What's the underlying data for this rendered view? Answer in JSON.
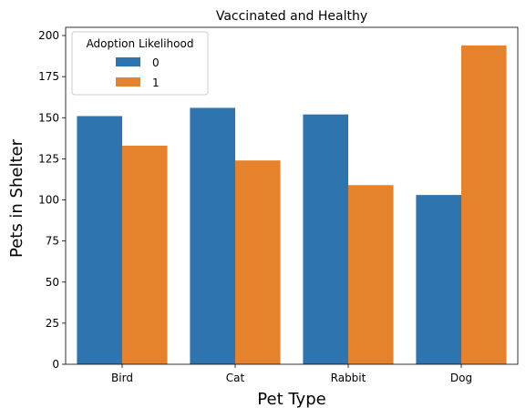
{
  "chart_data": {
    "type": "bar",
    "title": "Vaccinated and Healthy",
    "xlabel": "Pet Type",
    "ylabel": "Pets in Shelter",
    "categories": [
      "Bird",
      "Cat",
      "Rabbit",
      "Dog"
    ],
    "series": [
      {
        "name": "0",
        "values": [
          151,
          156,
          152,
          103
        ],
        "color": "#2e75b0"
      },
      {
        "name": "1",
        "values": [
          133,
          124,
          109,
          194
        ],
        "color": "#e6812c"
      }
    ],
    "ylim": [
      0,
      205
    ],
    "yticks": [
      0,
      25,
      50,
      75,
      100,
      125,
      150,
      175,
      200
    ],
    "legend": {
      "title": "Adoption Likelihood",
      "placement": "top-left"
    },
    "grid": false
  }
}
